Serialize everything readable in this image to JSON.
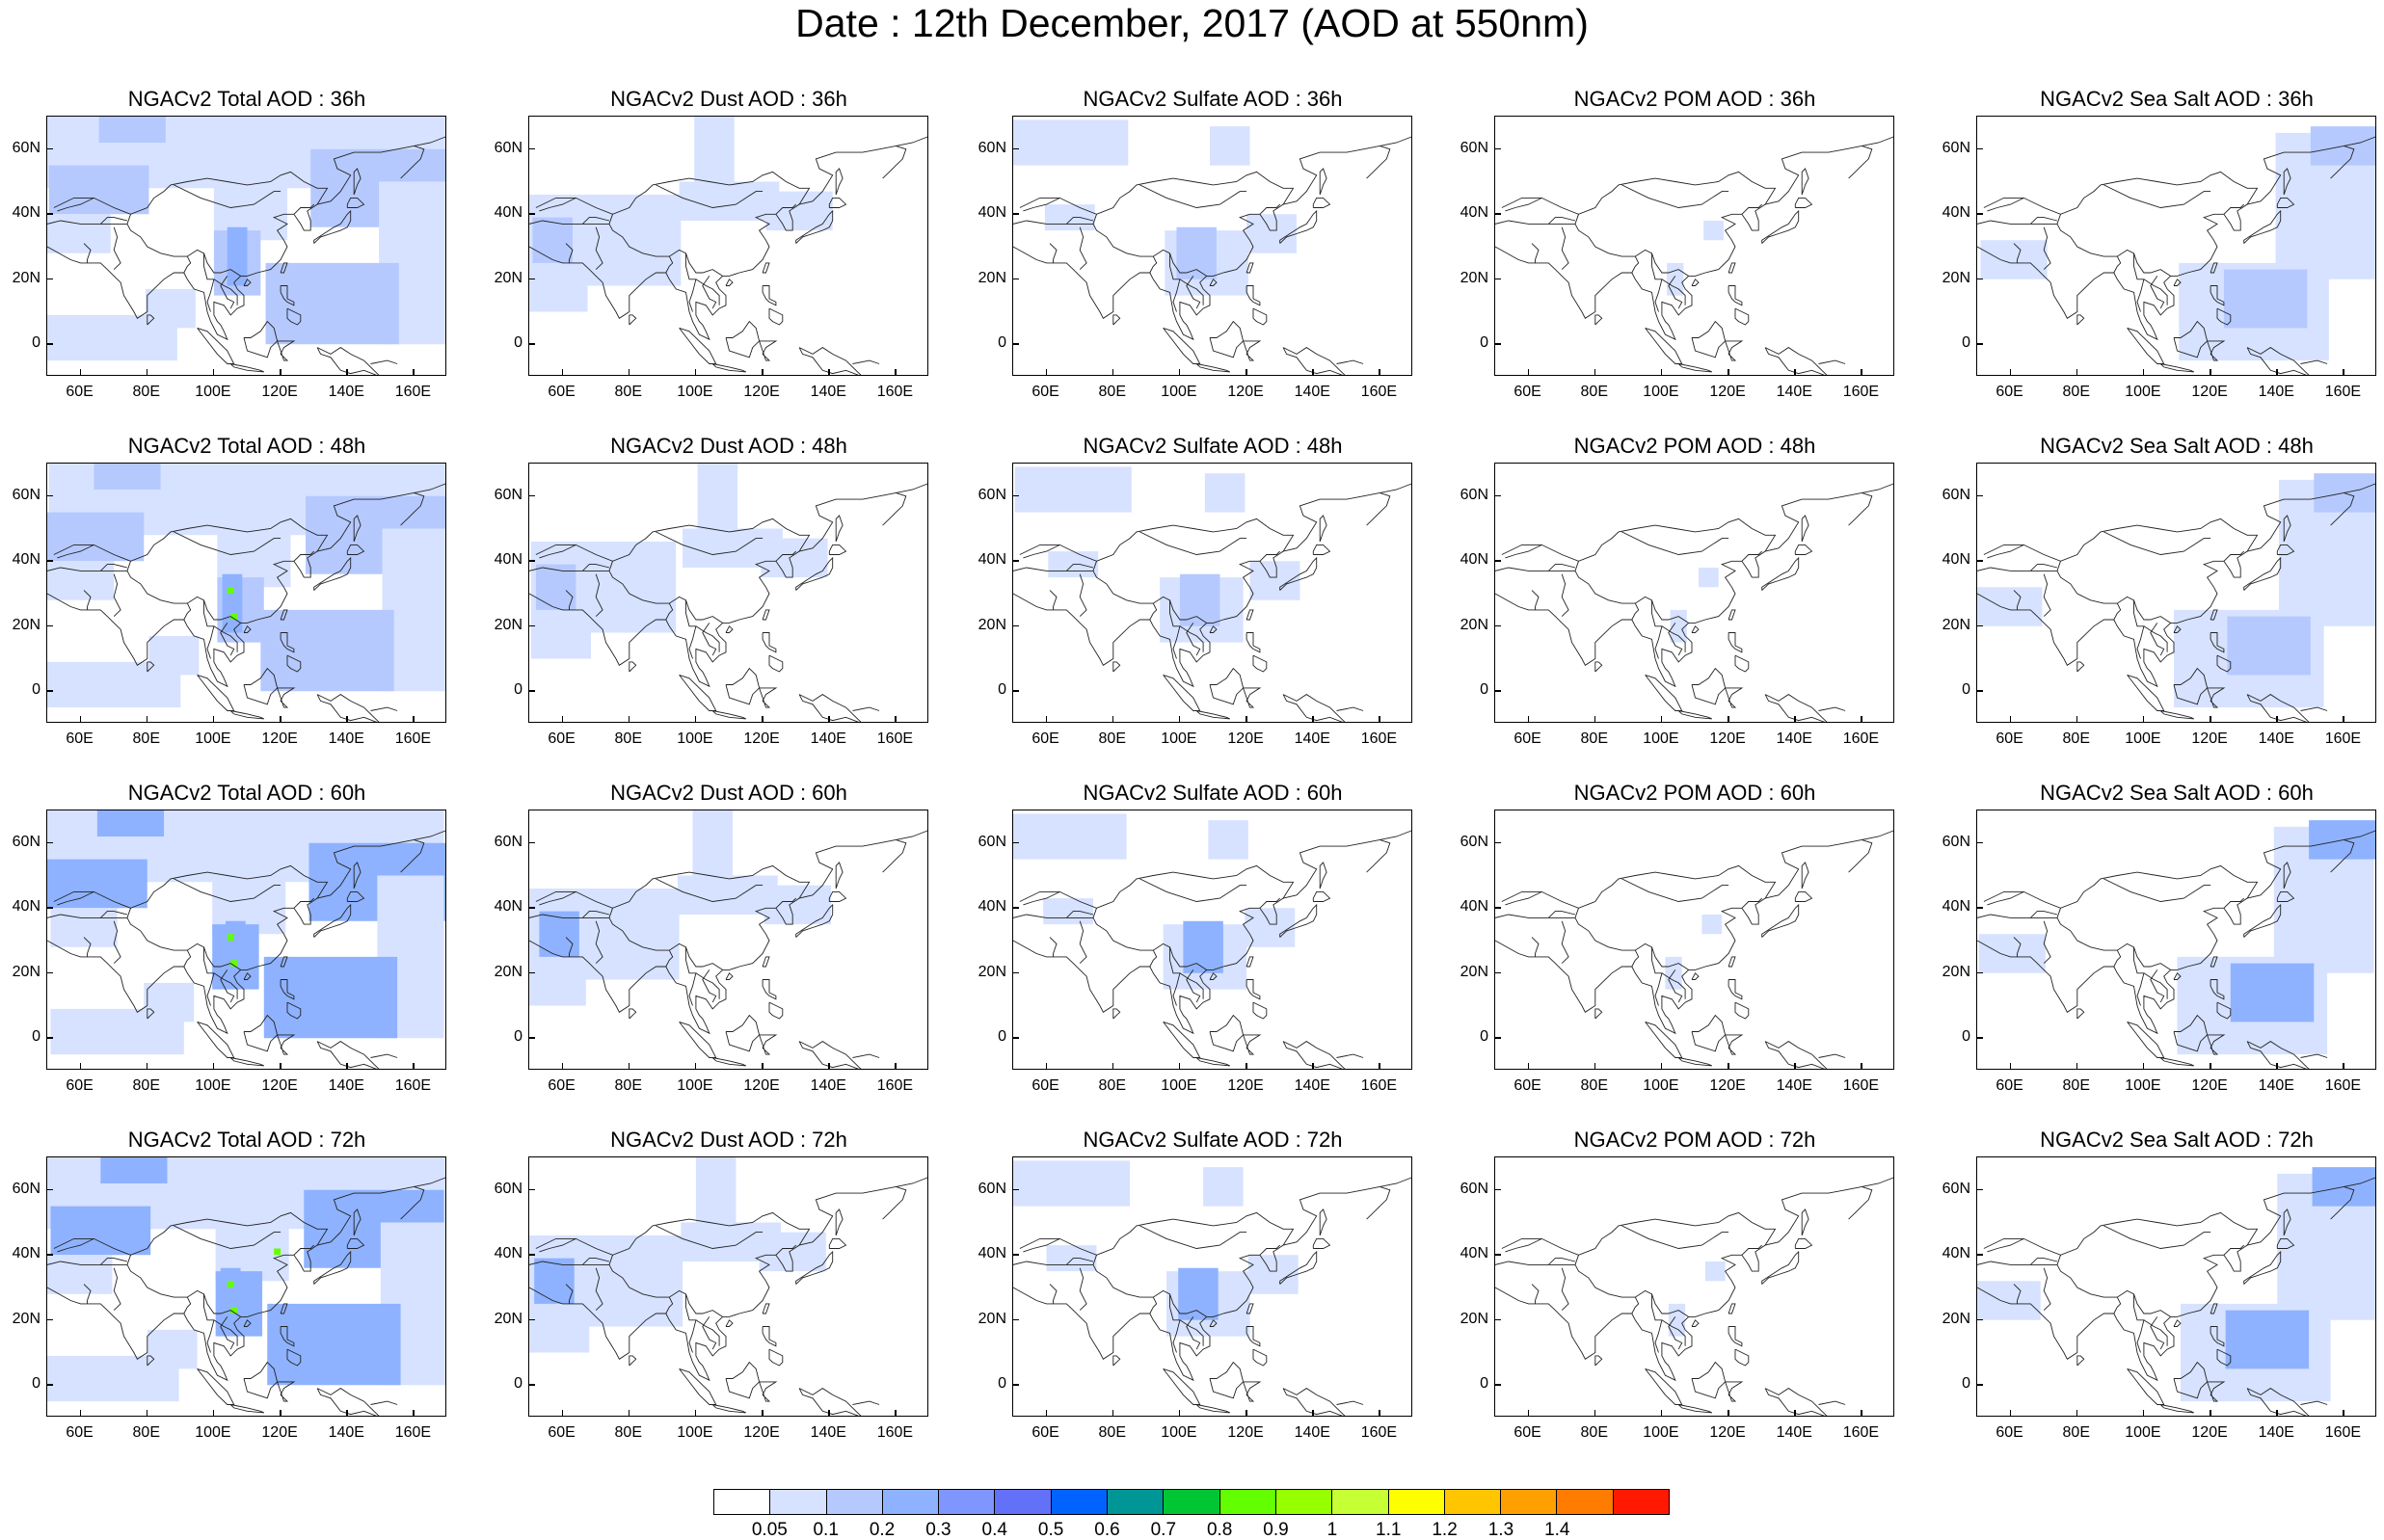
{
  "title": "Date : 12th December, 2017 (AOD at 550nm)",
  "panels": [
    {
      "title": "NGACv2 Total AOD : 36h",
      "species": "total",
      "hour": 36
    },
    {
      "title": "NGACv2 Dust AOD : 36h",
      "species": "dust",
      "hour": 36
    },
    {
      "title": "NGACv2 Sulfate AOD : 36h",
      "species": "sulfate",
      "hour": 36
    },
    {
      "title": "NGACv2 POM AOD : 36h",
      "species": "pom",
      "hour": 36
    },
    {
      "title": "NGACv2 Sea Salt AOD : 36h",
      "species": "seasalt",
      "hour": 36
    },
    {
      "title": "NGACv2 Total AOD : 48h",
      "species": "total",
      "hour": 48
    },
    {
      "title": "NGACv2 Dust AOD : 48h",
      "species": "dust",
      "hour": 48
    },
    {
      "title": "NGACv2 Sulfate AOD : 48h",
      "species": "sulfate",
      "hour": 48
    },
    {
      "title": "NGACv2 POM AOD : 48h",
      "species": "pom",
      "hour": 48
    },
    {
      "title": "NGACv2 Sea Salt AOD : 48h",
      "species": "seasalt",
      "hour": 48
    },
    {
      "title": "NGACv2 Total AOD : 60h",
      "species": "total",
      "hour": 60
    },
    {
      "title": "NGACv2 Dust AOD : 60h",
      "species": "dust",
      "hour": 60
    },
    {
      "title": "NGACv2 Sulfate AOD : 60h",
      "species": "sulfate",
      "hour": 60
    },
    {
      "title": "NGACv2 POM AOD : 60h",
      "species": "pom",
      "hour": 60
    },
    {
      "title": "NGACv2 Sea Salt AOD : 60h",
      "species": "seasalt",
      "hour": 60
    },
    {
      "title": "NGACv2 Total AOD : 72h",
      "species": "total",
      "hour": 72
    },
    {
      "title": "NGACv2 Dust AOD : 72h",
      "species": "dust",
      "hour": 72
    },
    {
      "title": "NGACv2 Sulfate AOD : 72h",
      "species": "sulfate",
      "hour": 72
    },
    {
      "title": "NGACv2 POM AOD : 72h",
      "species": "pom",
      "hour": 72
    },
    {
      "title": "NGACv2 Sea Salt  AOD : 72h",
      "species": "seasalt",
      "hour": 72
    }
  ],
  "axes": {
    "lon_range": [
      50,
      170
    ],
    "lat_range": [
      -10,
      70
    ],
    "x_ticks": [
      "60E",
      "80E",
      "100E",
      "120E",
      "140E",
      "160E"
    ],
    "x_tick_values": [
      60,
      80,
      100,
      120,
      140,
      160
    ],
    "y_ticks": [
      "60N",
      "40N",
      "20N",
      "0"
    ],
    "y_tick_values": [
      60,
      40,
      20,
      0
    ]
  },
  "colorbar": {
    "labels": [
      "0.05",
      "0.1",
      "0.2",
      "0.3",
      "0.4",
      "0.5",
      "0.6",
      "0.7",
      "0.8",
      "0.9",
      "1",
      "1.1",
      "1.2",
      "1.3",
      "1.4"
    ],
    "colors": [
      "#ffffff",
      "#d6e2ff",
      "#b5c9ff",
      "#8eb2ff",
      "#7f96ff",
      "#6370f8",
      "#0063ff",
      "#009696",
      "#00c633",
      "#63ff00",
      "#96ff00",
      "#c6ff33",
      "#ffff00",
      "#ffc600",
      "#ffa000",
      "#ff7c00",
      "#ff1900"
    ]
  }
}
